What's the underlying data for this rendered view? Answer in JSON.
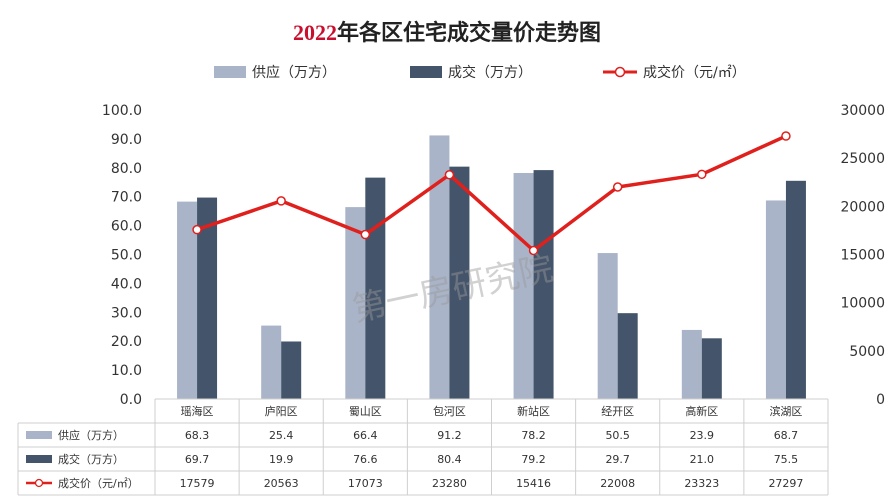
{
  "chart_data": {
    "type": "bar",
    "title": "2022年各区住宅成交量价走势图",
    "categories": [
      "瑶海区",
      "庐阳区",
      "蜀山区",
      "包河区",
      "新站区",
      "经开区",
      "高新区",
      "滨湖区"
    ],
    "series": [
      {
        "name": "供应（万方）",
        "type": "bar",
        "axis": "left",
        "color": "#aab4c8",
        "values": [
          68.3,
          25.4,
          66.4,
          91.2,
          78.2,
          50.5,
          23.9,
          68.7
        ],
        "labels": [
          "68.3",
          "25.4",
          "66.4",
          "91.2",
          "78.2",
          "50.5",
          "23.9",
          "68.7"
        ]
      },
      {
        "name": "成交（万方）",
        "type": "bar",
        "axis": "left",
        "color": "#44546a",
        "values": [
          69.7,
          19.9,
          76.6,
          80.4,
          79.2,
          29.7,
          21.0,
          75.5
        ],
        "labels": [
          "69.7",
          "19.9",
          "76.6",
          "80.4",
          "79.2",
          "29.7",
          "21.0",
          "75.5"
        ]
      },
      {
        "name": "成交价（元/㎡）",
        "type": "line",
        "axis": "right",
        "color": "#e0201c",
        "values": [
          17579,
          20563,
          17073,
          23280,
          15416,
          22008,
          23323,
          27297
        ],
        "labels": [
          "17579",
          "20563",
          "17073",
          "23280",
          "15416",
          "22008",
          "23323",
          "27297"
        ]
      }
    ],
    "left_axis": {
      "ylim": [
        0,
        100
      ],
      "ticks": [
        "0.0",
        "10.0",
        "20.0",
        "30.0",
        "40.0",
        "50.0",
        "60.0",
        "70.0",
        "80.0",
        "90.0",
        "100.0"
      ]
    },
    "right_axis": {
      "ylim": [
        0,
        30000
      ],
      "ticks": [
        "0",
        "5000",
        "10000",
        "15000",
        "20000",
        "25000",
        "30000"
      ]
    },
    "legend": "top",
    "grid": false,
    "data_table": true
  },
  "watermark": "第一房研究院"
}
